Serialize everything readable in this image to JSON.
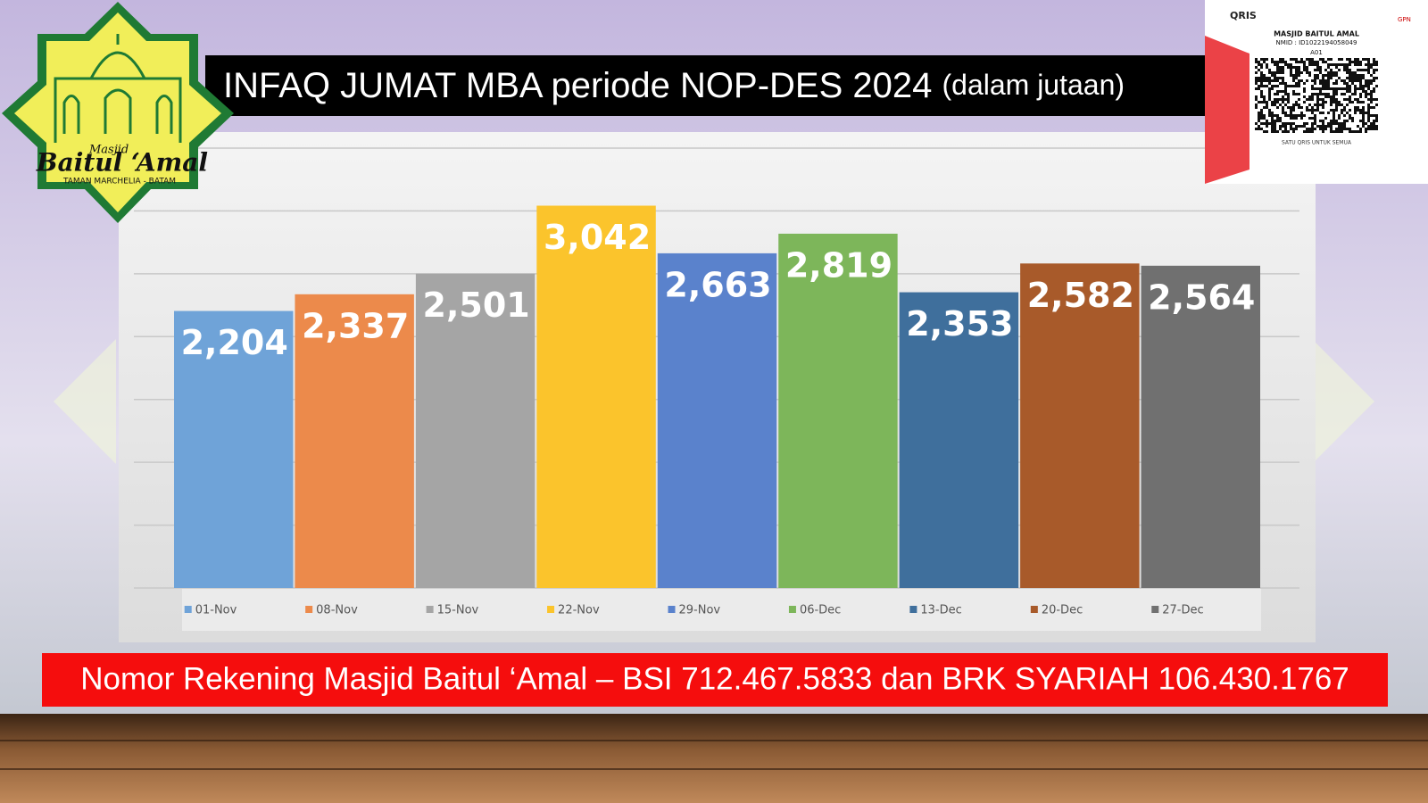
{
  "chart_data": {
    "type": "bar",
    "title": "INFAQ JUMAT MBA periode NOP-DES 2024",
    "subtitle": "(dalam jutaan)",
    "categories": [
      "01-Nov",
      "08-Nov",
      "15-Nov",
      "22-Nov",
      "29-Nov",
      "06-Dec",
      "13-Dec",
      "20-Dec",
      "27-Dec"
    ],
    "values": [
      2204,
      2337,
      2501,
      3042,
      2663,
      2819,
      2353,
      2582,
      2564
    ],
    "value_labels": [
      "2,204",
      "2,337",
      "2,501",
      "3,042",
      "2,663",
      "2,819",
      "2,353",
      "2,582",
      "2,564"
    ],
    "colors": [
      "#6fa3d8",
      "#ec8a4b",
      "#a5a5a5",
      "#fbc42c",
      "#5a82cc",
      "#7db65a",
      "#3f6f9c",
      "#a85a2a",
      "#707070"
    ],
    "ylim": [
      0,
      3500
    ],
    "yticks": [
      0,
      500,
      1000,
      1500,
      2000,
      2500,
      3000,
      3500
    ],
    "grid": true,
    "legend": "bottom"
  },
  "footer": "Nomor Rekening Masjid Baitul ‘Amal – BSI 712.467.5833 dan BRK SYARIAH 106.430.1767",
  "logo": {
    "small": "Masjid",
    "name": "Baitul ‘Amal",
    "place": "TAMAN MARCHELIA - BATAM"
  },
  "qris": {
    "brand": "QRIS",
    "gpn": "GPN",
    "merchant": "MASJID BAITUL AMAL",
    "nmid": "NMID : ID1022194058049",
    "code": "A01",
    "slogan": "SATU QRIS UNTUK SEMUA"
  }
}
